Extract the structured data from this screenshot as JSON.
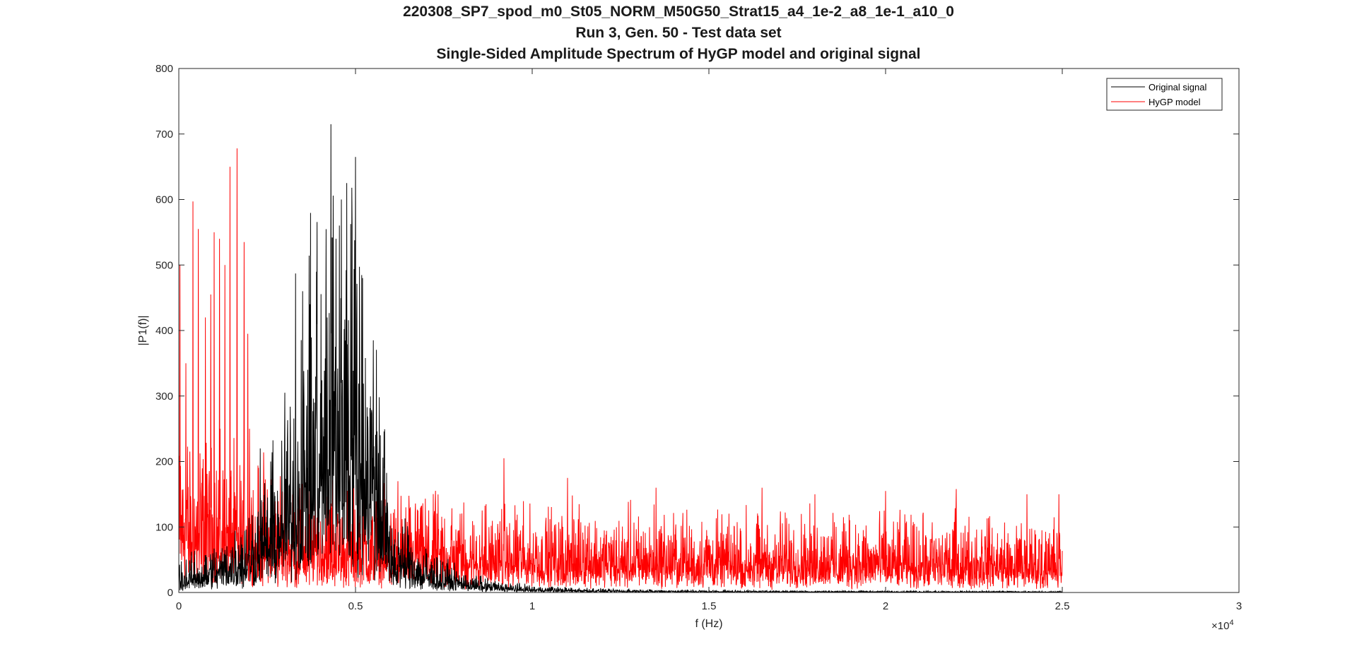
{
  "chart_data": {
    "type": "line",
    "title_lines": [
      "220308_SP7_spod_m0_St05_NORM_M50G50_Strat15_a4_1e-2_a8_1e-1_a10_0",
      "Run 3, Gen. 50 - Test data set",
      "Single-Sided Amplitude Spectrum of HyGP model and original signal"
    ],
    "xlabel": "f (Hz)",
    "ylabel": "|P1(f)|",
    "x_exponent_label": "×10",
    "x_exponent_power": "4",
    "xlim": [
      0,
      30000
    ],
    "ylim": [
      0,
      800
    ],
    "x_ticks": [
      0,
      5000,
      10000,
      15000,
      20000,
      25000,
      30000
    ],
    "x_tick_labels": [
      "0",
      "0.5",
      "1",
      "1.5",
      "2",
      "2.5",
      "3"
    ],
    "y_ticks": [
      0,
      100,
      200,
      300,
      400,
      500,
      600,
      700,
      800
    ],
    "y_tick_labels": [
      "0",
      "100",
      "200",
      "300",
      "400",
      "500",
      "600",
      "700",
      "800"
    ],
    "grid": false,
    "legend_position": "top-right",
    "series": [
      {
        "name": "Original signal",
        "color": "#000000",
        "envelope": [
          [
            0,
            25
          ],
          [
            1000,
            40
          ],
          [
            2000,
            70
          ],
          [
            2500,
            110
          ],
          [
            3000,
            140
          ],
          [
            3500,
            220
          ],
          [
            4000,
            300
          ],
          [
            4500,
            330
          ],
          [
            5000,
            310
          ],
          [
            5500,
            240
          ],
          [
            5800,
            150
          ],
          [
            6000,
            70
          ],
          [
            7000,
            35
          ],
          [
            8000,
            18
          ],
          [
            9000,
            10
          ],
          [
            10000,
            6
          ],
          [
            12000,
            3
          ],
          [
            15000,
            2
          ],
          [
            20000,
            1.5
          ],
          [
            25000,
            1
          ]
        ],
        "peaks": [
          [
            2300,
            220
          ],
          [
            2600,
            200
          ],
          [
            3000,
            305
          ],
          [
            3300,
            487
          ],
          [
            3500,
            460
          ],
          [
            3700,
            440
          ],
          [
            3900,
            410
          ],
          [
            4200,
            420
          ],
          [
            4300,
            715
          ],
          [
            4450,
            540
          ],
          [
            4600,
            600
          ],
          [
            4750,
            625
          ],
          [
            4900,
            560
          ],
          [
            5000,
            665
          ],
          [
            5200,
            480
          ],
          [
            5500,
            385
          ],
          [
            5700,
            240
          ]
        ]
      },
      {
        "name": "HyGP model",
        "color": "#ff0000",
        "envelope": [
          [
            0,
            130
          ],
          [
            1000,
            120
          ],
          [
            2000,
            110
          ],
          [
            3000,
            95
          ],
          [
            4000,
            90
          ],
          [
            5000,
            85
          ],
          [
            6000,
            80
          ],
          [
            8000,
            75
          ],
          [
            10000,
            70
          ],
          [
            15000,
            65
          ],
          [
            20000,
            62
          ],
          [
            25000,
            60
          ]
        ],
        "peaks": [
          [
            30,
            500
          ],
          [
            200,
            350
          ],
          [
            400,
            597
          ],
          [
            550,
            555
          ],
          [
            750,
            420
          ],
          [
            900,
            455
          ],
          [
            1000,
            550
          ],
          [
            1150,
            540
          ],
          [
            1300,
            500
          ],
          [
            1450,
            650
          ],
          [
            1650,
            678
          ],
          [
            1850,
            535
          ],
          [
            1950,
            395
          ],
          [
            2000,
            250
          ],
          [
            3500,
            180
          ],
          [
            4800,
            260
          ],
          [
            6200,
            170
          ],
          [
            9200,
            205
          ],
          [
            11000,
            175
          ],
          [
            13500,
            160
          ],
          [
            16500,
            160
          ],
          [
            18000,
            150
          ],
          [
            20000,
            155
          ],
          [
            22000,
            158
          ],
          [
            24000,
            150
          ],
          [
            24900,
            150
          ]
        ],
        "x_end": 25000
      }
    ]
  }
}
